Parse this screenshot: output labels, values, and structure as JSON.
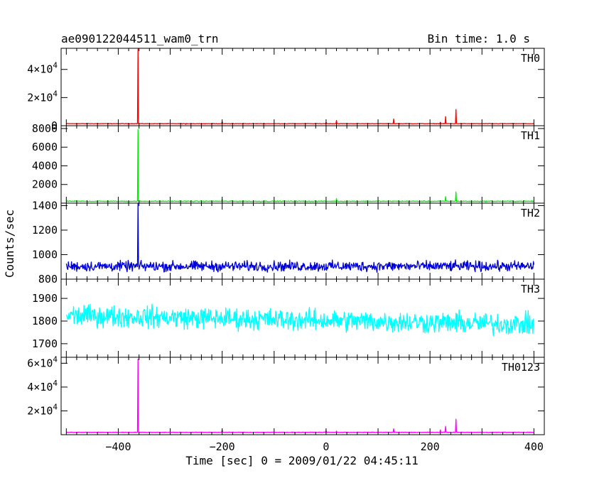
{
  "chart_data": {
    "type": "line",
    "title": "ae090122044511_wam0_trn",
    "subtitle": "Bin time: 1.0 s",
    "xlabel": "Time [sec] 0 = 2009/01/22 04:45:11",
    "ylabel": "Counts/sec",
    "xlim": [
      -510,
      420
    ],
    "x_range": [
      -500,
      400
    ],
    "x_ticks": [
      -400,
      -200,
      0,
      200,
      400
    ],
    "x_tick_labels": [
      "−400",
      "−200",
      "0",
      "200",
      "400"
    ],
    "grid": false,
    "legend": "none",
    "panels": [
      {
        "name": "TH0",
        "color": "#ff0000",
        "ylim": [
          0,
          55000
        ],
        "y_ticks": [
          {
            "value": 0,
            "label": "0",
            "base": null
          },
          {
            "value": 20000,
            "label": "",
            "base": "2×10",
            "exp": "4"
          },
          {
            "value": 40000,
            "label": "",
            "base": "4×10",
            "exp": "4"
          }
        ],
        "baseline": 1500,
        "noise": 150,
        "peaks": [
          [
            -362,
            54500
          ],
          [
            -270,
            900
          ],
          [
            -200,
            3000
          ],
          [
            -130,
            1500
          ],
          [
            0,
            2400
          ],
          [
            20,
            3800
          ],
          [
            90,
            1600
          ],
          [
            130,
            4800
          ],
          [
            220,
            2500
          ],
          [
            230,
            6500
          ],
          [
            250,
            11500
          ]
        ]
      },
      {
        "name": "TH1",
        "color": "#00ee00",
        "ylim": [
          0,
          8300
        ],
        "y_ticks": [
          {
            "value": 2000,
            "label": "2000"
          },
          {
            "value": 4000,
            "label": "4000"
          },
          {
            "value": 6000,
            "label": "6000"
          },
          {
            "value": 8000,
            "label": "8000"
          }
        ],
        "baseline": 200,
        "noise": 40,
        "peaks": [
          [
            -362,
            7900
          ],
          [
            -200,
            420
          ],
          [
            20,
            480
          ],
          [
            230,
            700
          ],
          [
            250,
            1200
          ]
        ]
      },
      {
        "name": "TH2",
        "color": "#0000dd",
        "ylim": [
          800,
          1420
        ],
        "y_ticks": [
          {
            "value": 800,
            "label": "800"
          },
          {
            "value": 1000,
            "label": "1000"
          },
          {
            "value": 1200,
            "label": "1200"
          },
          {
            "value": 1400,
            "label": "1400"
          }
        ],
        "baseline": 905,
        "noise": 35,
        "peaks": [
          [
            -362,
            1420
          ]
        ]
      },
      {
        "name": "TH3",
        "color": "#00ffff",
        "ylim": [
          1640,
          1985
        ],
        "y_ticks": [
          {
            "value": 1700,
            "label": "1700"
          },
          {
            "value": 1800,
            "label": "1800"
          },
          {
            "value": 1900,
            "label": "1900"
          }
        ],
        "baseline": 1825,
        "trend_end": 1785,
        "noise": 40,
        "peaks": []
      },
      {
        "name": "TH0123",
        "color": "#ff00ff",
        "ylim": [
          0,
          65000
        ],
        "y_ticks": [
          {
            "value": 20000,
            "label": "",
            "base": "2×10",
            "exp": "4"
          },
          {
            "value": 40000,
            "label": "",
            "base": "4×10",
            "exp": "4"
          },
          {
            "value": 60000,
            "label": "",
            "base": "6×10",
            "exp": "4"
          }
        ],
        "baseline": 2000,
        "noise": 200,
        "peaks": [
          [
            -362,
            63500
          ],
          [
            -200,
            4000
          ],
          [
            0,
            3500
          ],
          [
            20,
            3000
          ],
          [
            130,
            5000
          ],
          [
            220,
            4000
          ],
          [
            230,
            7000
          ],
          [
            250,
            13000
          ]
        ]
      }
    ]
  }
}
